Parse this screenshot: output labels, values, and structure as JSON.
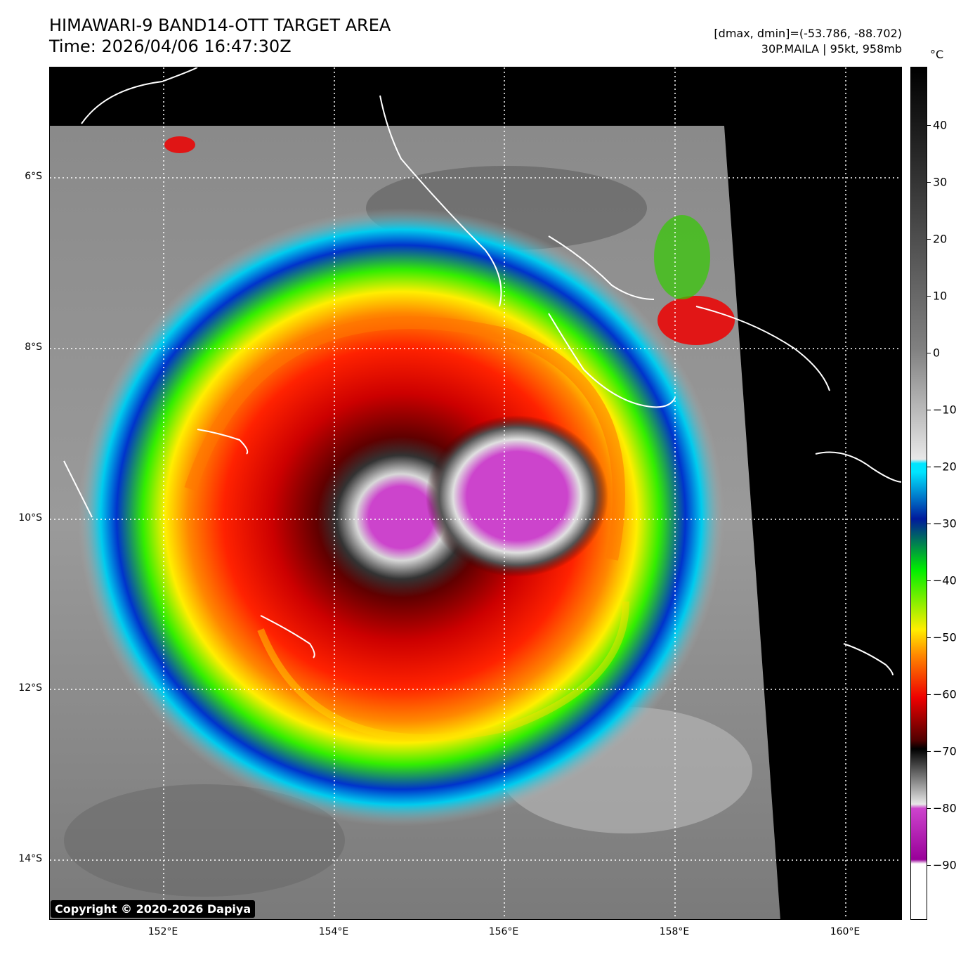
{
  "header": {
    "title_line1": "HIMAWARI-9 BAND14-OTT TARGET AREA",
    "title_line2": "Time: 2026/04/06 16:47:30Z",
    "info_line1": "[dmax, dmin]=(-53.786, -88.702)",
    "info_line2": "30P.MAILA | 95kt, 958mb"
  },
  "map": {
    "latitude_labels": [
      "6°S",
      "8°S",
      "10°S",
      "12°S",
      "14°S"
    ],
    "longitude_labels": [
      "152°E",
      "154°E",
      "156°E",
      "158°E",
      "160°E"
    ]
  },
  "colorbar": {
    "unit": "°C",
    "tick_labels": [
      "40",
      "30",
      "20",
      "10",
      "0",
      "−10",
      "−20",
      "−30",
      "−40",
      "−50",
      "−60",
      "−70",
      "−80",
      "−90"
    ],
    "colors": {
      "warm": "#000000",
      "neutral": "#808080",
      "cool": "#e8e8e8",
      "cyan": "#00e5ff",
      "blue": "#001a9c",
      "green": "#00ee00",
      "yellow": "#ffee00",
      "orange": "#ff8800",
      "red": "#ee0000",
      "dark_red": "#500000",
      "magenta": "#cc44cc",
      "white": "#ffffff"
    }
  },
  "copyright": "Copyright © 2020-2026 Dapiya"
}
